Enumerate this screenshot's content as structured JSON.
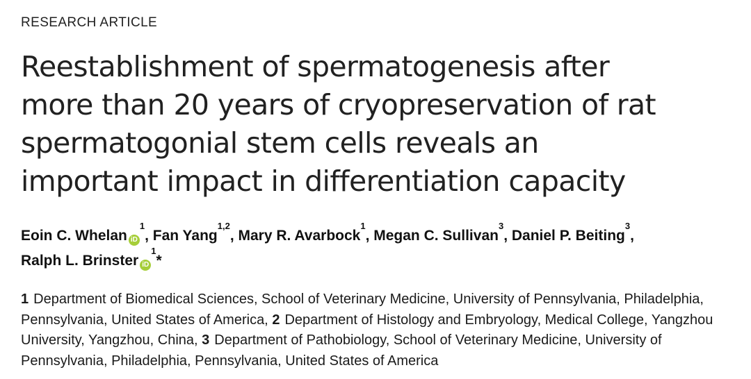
{
  "page": {
    "background_color": "#ffffff",
    "text_color": "#212121"
  },
  "kicker": {
    "label": "RESEARCH ARTICLE"
  },
  "title": {
    "lines": [
      "Reestablishment of spermatogenesis after",
      "more than 20 years of cryopreservation of rat",
      "spermatogonial stem cells reveals an",
      "important impact in differentiation capacity"
    ]
  },
  "orcid": {
    "label": "iD",
    "color": "#a6ce39"
  },
  "authors": [
    {
      "name": "Eoin C. Whelan",
      "has_orcid": true,
      "sup": "1",
      "sep": ", "
    },
    {
      "name": "Fan Yang",
      "has_orcid": false,
      "sup": "1,2",
      "sep": ", "
    },
    {
      "name": "Mary R. Avarbock",
      "has_orcid": false,
      "sup": "1",
      "sep": ", "
    },
    {
      "name": "Megan C. Sullivan",
      "has_orcid": false,
      "sup": "3",
      "sep": ", "
    },
    {
      "name": "Daniel P. Beiting",
      "has_orcid": false,
      "sup": "3",
      "sep": ","
    },
    {
      "name": "Ralph L. Brinster",
      "has_orcid": true,
      "sup": "1",
      "suffix": "*"
    }
  ],
  "affiliations": [
    {
      "num": "1",
      "text": "Department of Biomedical Sciences, School of Veterinary Medicine, University of Pennsylvania, Philadelphia, Pennsylvania, United States of America,"
    },
    {
      "num": "2",
      "text": "Department of Histology and Embryology, Medical College, Yangzhou University, Yangzhou, China,"
    },
    {
      "num": "3",
      "text": "Department of Pathobiology, School of Veterinary Medicine, University of Pennsylvania, Philadelphia, Pennsylvania, United States of America"
    }
  ]
}
